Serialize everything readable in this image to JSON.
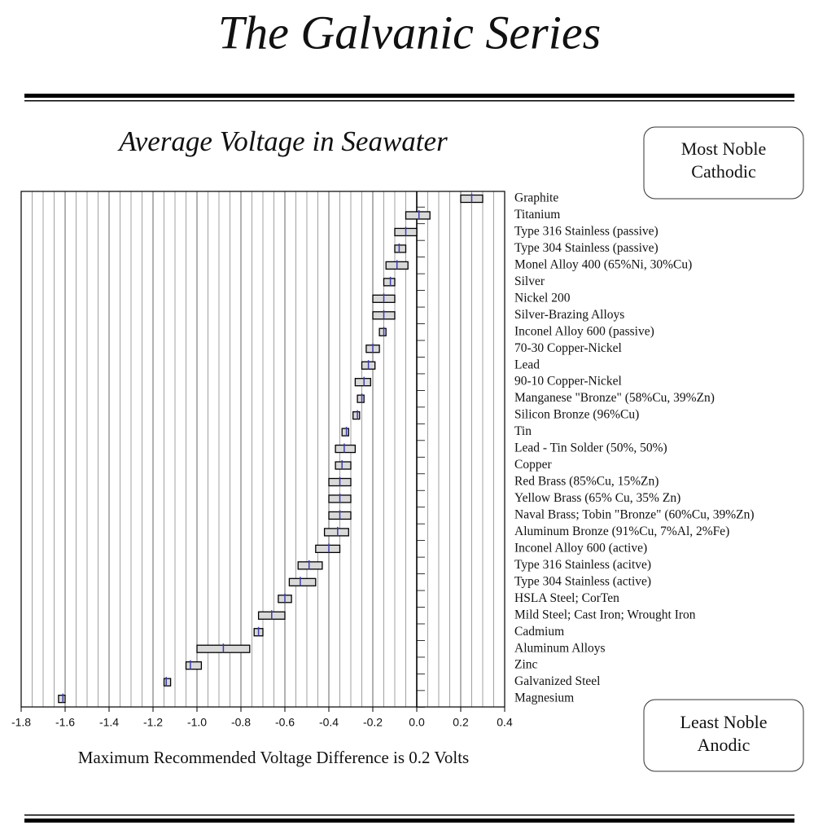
{
  "header": {
    "title": "The Galvanic Series"
  },
  "chart_data": {
    "type": "floating_bar",
    "title": "Average Voltage in Seawater",
    "note": "Maximum Recommended Voltage Difference is 0.2 Volts",
    "top_box": [
      "Most Noble",
      "Cathodic"
    ],
    "bottom_box": [
      "Least Noble",
      "Anodic"
    ],
    "categories": [
      "Graphite",
      "Titanium",
      "Type 316 Stainless (passive)",
      "Type 304 Stainless (passive)",
      "Monel Alloy 400 (65%Ni, 30%Cu)",
      "Silver",
      "Nickel 200",
      "Silver-Brazing Alloys",
      "Inconel Alloy 600 (passive)",
      "70-30 Copper-Nickel",
      "Lead",
      "90-10 Copper-Nickel",
      "Manganese \"Bronze\"  (58%Cu, 39%Zn)",
      "Silicon Bronze  (96%Cu)",
      "Tin",
      "Lead - Tin Solder  (50%, 50%)",
      "Copper",
      "Red Brass  (85%Cu, 15%Zn)",
      "Yellow Brass  (65% Cu, 35% Zn)",
      "Naval Brass;  Tobin \"Bronze\"  (60%Cu, 39%Zn)",
      "Aluminum Bronze  (91%Cu, 7%Al, 2%Fe)",
      "Inconel Alloy 600 (active)",
      "Type 316 Stainless (acitve)",
      "Type 304 Stainless (active)",
      "HSLA Steel;  CorTen",
      "Mild Steel;  Cast Iron;  Wrought Iron",
      "Cadmium",
      "Aluminum Alloys",
      "Zinc",
      "Galvanized Steel",
      "Magnesium"
    ],
    "low": [
      0.2,
      -0.05,
      -0.1,
      -0.1,
      -0.14,
      -0.15,
      -0.2,
      -0.2,
      -0.17,
      -0.23,
      -0.25,
      -0.28,
      -0.27,
      -0.29,
      -0.34,
      -0.37,
      -0.37,
      -0.4,
      -0.4,
      -0.4,
      -0.42,
      -0.46,
      -0.54,
      -0.58,
      -0.63,
      -0.72,
      -0.74,
      -1.0,
      -1.05,
      -1.15,
      -1.63
    ],
    "high": [
      0.3,
      0.06,
      0.0,
      -0.05,
      -0.04,
      -0.1,
      -0.1,
      -0.1,
      -0.14,
      -0.17,
      -0.19,
      -0.21,
      -0.24,
      -0.26,
      -0.31,
      -0.28,
      -0.3,
      -0.3,
      -0.3,
      -0.3,
      -0.31,
      -0.35,
      -0.43,
      -0.46,
      -0.57,
      -0.6,
      -0.7,
      -0.76,
      -0.98,
      -1.12,
      -1.6
    ],
    "mid": [
      0.25,
      0.01,
      -0.05,
      -0.08,
      -0.09,
      -0.12,
      -0.15,
      -0.15,
      -0.15,
      -0.2,
      -0.22,
      -0.24,
      -0.25,
      -0.27,
      -0.32,
      -0.33,
      -0.34,
      -0.35,
      -0.35,
      -0.35,
      -0.36,
      -0.4,
      -0.49,
      -0.53,
      -0.6,
      -0.66,
      -0.72,
      -0.88,
      -1.03,
      -1.14,
      -1.61
    ],
    "bar_color": "#d9d9d9",
    "mid_color": "#3c3cae",
    "xlim": [
      -1.8,
      0.4
    ],
    "xticks": [
      -1.8,
      -1.6,
      -1.4,
      -1.2,
      {
        "value": -1,
        "label": "-1.0"
      },
      -0.8,
      -0.6,
      -0.4,
      -0.2,
      {
        "value": 0,
        "label": "0.0"
      },
      0.2,
      0.4
    ],
    "x_minor_ticks": [
      -1.75,
      -1.7,
      -1.65,
      -1.55,
      -1.5,
      -1.45,
      -1.35,
      -1.3,
      -1.25,
      -1.15,
      -1.1,
      -1.05,
      -0.95,
      -0.9,
      -0.85,
      -0.75,
      -0.7,
      -0.65,
      -0.55,
      -0.5,
      -0.45,
      -0.35,
      -0.3,
      -0.25,
      -0.15,
      -0.1,
      -0.05,
      0.05,
      0.1,
      0.15,
      0.25,
      0.3,
      0.35
    ],
    "grid": true
  }
}
